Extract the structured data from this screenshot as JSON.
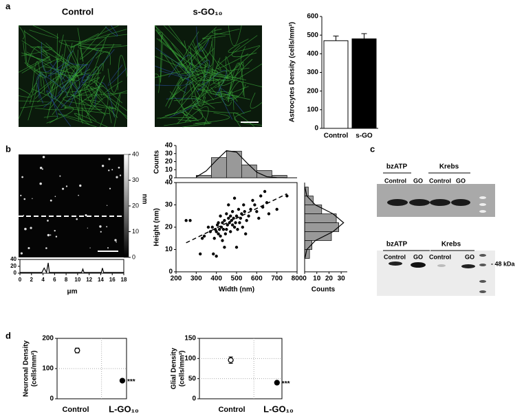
{
  "panel_labels": [
    "a",
    "b",
    "c",
    "d"
  ],
  "micrographs": {
    "titles": [
      "Control",
      "s-GO₁₀"
    ]
  },
  "afm_image": {
    "colorbar_label": "nm",
    "colorbar_lim": [
      0,
      40
    ],
    "colorbar_ticks": [
      0,
      10,
      20,
      30,
      40
    ]
  },
  "western_blot": {
    "top_groups": [
      "bzATP",
      "Krebs"
    ],
    "top_lanes": [
      "Control",
      "GO",
      "Control",
      "GO"
    ],
    "bottom_groups": [
      "bzATP",
      "Krebs"
    ],
    "bottom_lanes": [
      "Control",
      "GO",
      "Control",
      "GO"
    ],
    "marker_label": "- 48 kDa"
  },
  "chart_data": [
    {
      "type": "bar",
      "ylabel": "Astrocytes Density (cells/mm²)",
      "categories": [
        "Control",
        "s-GO"
      ],
      "values": [
        470,
        480
      ],
      "errors": [
        25,
        28
      ],
      "colors": [
        "#ffffff",
        "#000000"
      ],
      "ylim": [
        0,
        600
      ],
      "yticks": [
        0,
        100,
        200,
        300,
        400,
        500,
        600
      ]
    },
    {
      "type": "line",
      "xlabel": "μm",
      "color": "#000000",
      "x": [
        0,
        1,
        2,
        3,
        3.8,
        4.2,
        4.6,
        4.9,
        5.1,
        5.4,
        6,
        8,
        10,
        10.7,
        10.9,
        11.1,
        12,
        14,
        14.1,
        14.3,
        14.5,
        15,
        17,
        18
      ],
      "values": [
        2,
        2,
        2,
        2,
        2,
        15,
        2,
        30,
        2,
        2,
        2,
        2,
        2,
        2,
        12,
        2,
        2,
        2,
        2,
        15,
        2,
        2,
        2,
        2
      ],
      "xlim": [
        0,
        18
      ],
      "xticks": [
        0,
        2,
        4,
        6,
        8,
        10,
        12,
        14,
        16,
        18
      ],
      "ylim": [
        0,
        40
      ],
      "yticks": [
        0,
        20,
        40
      ]
    },
    {
      "type": "histogram",
      "ylabel": "Counts",
      "color": "#999999",
      "bins": [
        300,
        375,
        450,
        525,
        600,
        675,
        750
      ],
      "counts": [
        3,
        25,
        33,
        16,
        9,
        3
      ],
      "fit": {
        "x": [
          300,
          350,
          400,
          450,
          500,
          550,
          600,
          650,
          700,
          750
        ],
        "values": [
          0.9,
          8.6,
          21.7,
          33.6,
          31.8,
          18.8,
          6.9,
          1.3,
          0.2,
          0
        ]
      },
      "xlim": [
        200,
        800
      ],
      "ylim": [
        0,
        40
      ],
      "yticks": [
        0,
        10,
        20,
        30,
        40
      ]
    },
    {
      "type": "scatter",
      "xlabel": "Width (nm)",
      "ylabel": "Height (nm)",
      "color": "#000000",
      "x": [
        250,
        270,
        320,
        330,
        340,
        360,
        370,
        380,
        385,
        390,
        395,
        400,
        400,
        405,
        410,
        410,
        415,
        420,
        420,
        425,
        430,
        430,
        435,
        440,
        440,
        445,
        450,
        450,
        455,
        460,
        460,
        465,
        470,
        470,
        475,
        480,
        480,
        485,
        490,
        490,
        495,
        500,
        500,
        505,
        510,
        515,
        520,
        525,
        530,
        535,
        540,
        545,
        550,
        560,
        570,
        580,
        590,
        600,
        610,
        620,
        630,
        640,
        650,
        660,
        700,
        750
      ],
      "values": [
        23,
        23,
        8,
        15,
        16,
        20,
        18,
        20,
        8,
        15,
        19,
        7,
        18,
        21,
        22,
        17,
        19,
        16,
        25,
        20,
        14,
        22,
        19,
        11,
        23,
        17,
        19,
        26,
        21,
        24,
        30,
        22,
        18,
        25,
        23,
        27,
        21,
        24,
        20,
        33,
        22,
        11,
        25,
        19,
        28,
        22,
        24,
        26,
        20,
        30,
        27,
        17,
        23,
        25,
        28,
        32,
        30,
        27,
        24,
        34,
        29,
        36,
        31,
        26,
        28,
        34
      ],
      "fit": {
        "x": [
          250,
          750
        ],
        "values": [
          13,
          35
        ]
      },
      "xlim": [
        200,
        800
      ],
      "xticks": [
        200,
        300,
        400,
        500,
        600,
        700,
        800
      ],
      "ylim": [
        0,
        40
      ],
      "yticks": [
        0,
        10,
        20,
        30,
        40
      ]
    },
    {
      "type": "histogram",
      "orientation": "horizontal",
      "xlabel": "Counts",
      "color": "#999999",
      "bins": [
        6,
        10,
        14,
        18,
        22,
        26,
        30,
        34,
        38
      ],
      "counts": [
        4,
        6,
        22,
        28,
        26,
        14,
        7,
        3
      ],
      "fit": {
        "x": [
          6,
          10,
          14,
          18,
          22,
          26,
          30,
          34,
          38
        ],
        "values": [
          0.2,
          1.8,
          8.8,
          23.3,
          32,
          23.3,
          8.8,
          1.8,
          0.2
        ]
      },
      "xlim": [
        0,
        35
      ],
      "xticks": [
        0,
        10,
        20,
        30
      ],
      "ylim": [
        0,
        40
      ]
    },
    {
      "type": "dot",
      "ylabel": [
        "Neuronal Density",
        "(cells/mm²)"
      ],
      "categories": [
        "Control",
        "L-GO₁₀"
      ],
      "values": [
        160,
        60
      ],
      "errors": [
        8,
        4
      ],
      "marker_fills": [
        "#ffffff",
        "#000000"
      ],
      "annotations": [
        null,
        "***"
      ],
      "grid": true,
      "ylim": [
        0,
        200
      ],
      "yticks": [
        0,
        100,
        200
      ]
    },
    {
      "type": "dot",
      "ylabel": [
        "Glial Density",
        "(cells/mm²)"
      ],
      "categories": [
        "Control",
        "L-GO₁₀"
      ],
      "values": [
        96,
        40
      ],
      "errors": [
        8,
        3
      ],
      "marker_fills": [
        "#ffffff",
        "#000000"
      ],
      "annotations": [
        null,
        "***"
      ],
      "grid": true,
      "ylim": [
        0,
        150
      ],
      "yticks": [
        0,
        50,
        100,
        150
      ]
    }
  ]
}
